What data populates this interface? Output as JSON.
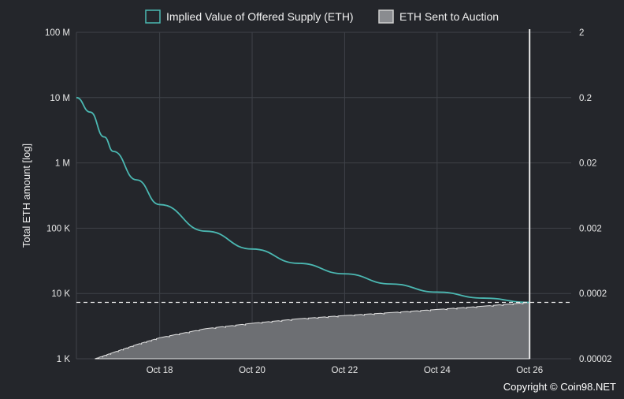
{
  "chart_data": {
    "type": "line",
    "title": "",
    "ylabel": "Total ETH amount [log]",
    "y_scale": "log",
    "ylim": [
      1000,
      100000000
    ],
    "y_ticks": [
      "1 K",
      "10 K",
      "100 K",
      "1 M",
      "10 M",
      "100 M"
    ],
    "y2_ticks": [
      "0.00002",
      "0.0002",
      "0.002",
      "0.02",
      "0.2",
      "2"
    ],
    "y2lim": [
      2e-05,
      2
    ],
    "x_ticks": [
      "Oct 18",
      "Oct 20",
      "Oct 22",
      "Oct 24",
      "Oct 26"
    ],
    "grid": true,
    "legend_position": "top",
    "series": [
      {
        "name": "Implied Value of Offered Supply (ETH)",
        "type": "line",
        "color": "#4bb8b2",
        "x": [
          "Oct 16.2",
          "Oct 16.5",
          "Oct 16.8",
          "Oct 17",
          "Oct 17.5",
          "Oct 18",
          "Oct 19",
          "Oct 20",
          "Oct 21",
          "Oct 22",
          "Oct 23",
          "Oct 24",
          "Oct 25",
          "Oct 26"
        ],
        "values": [
          10000000,
          6000000,
          2500000,
          1500000,
          550000,
          230000,
          90000,
          48000,
          29000,
          20000,
          14000,
          10500,
          8500,
          7300
        ]
      },
      {
        "name": "ETH Sent to Auction",
        "type": "area",
        "color": "#6d6f73",
        "x": [
          "Oct 16.6",
          "Oct 17",
          "Oct 17.5",
          "Oct 18",
          "Oct 19",
          "Oct 20",
          "Oct 21",
          "Oct 22",
          "Oct 23",
          "Oct 24",
          "Oct 25",
          "Oct 26"
        ],
        "values": [
          1000,
          1250,
          1650,
          2100,
          2900,
          3500,
          4100,
          4600,
          5100,
          5700,
          6400,
          7300
        ]
      }
    ],
    "reference_line": {
      "style": "dashed",
      "value": 7300,
      "color": "#e8e8e8"
    },
    "marker_line": {
      "x": "Oct 26",
      "color": "#e8e8e8"
    }
  },
  "legend": [
    {
      "label": "Implied Value of Offered Supply (ETH)",
      "swatch_fill": "#24262b",
      "swatch_stroke": "#4bb8b2"
    },
    {
      "label": "ETH Sent to Auction",
      "swatch_fill": "#8a8c90",
      "swatch_stroke": "#d0d0d0"
    }
  ],
  "copyright": "Copyright © Coin98.NET"
}
